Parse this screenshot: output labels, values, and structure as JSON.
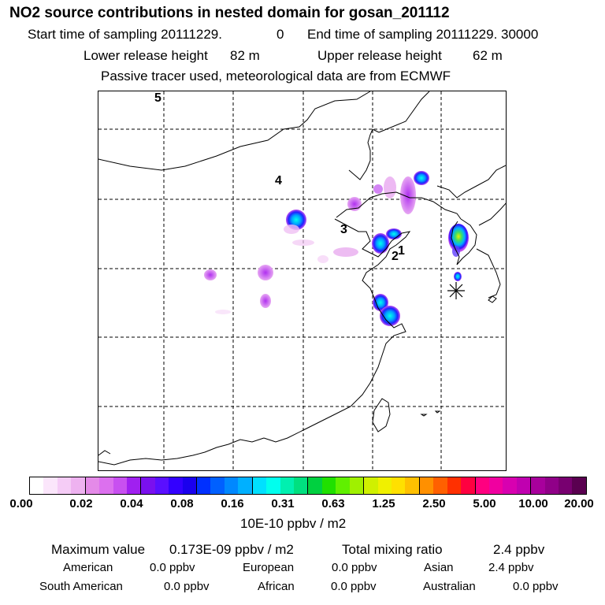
{
  "header": {
    "title": "NO2 source contributions in nested domain for gosan_201112",
    "start_label": "Start time of sampling 20111229.",
    "start_hour": "0",
    "end_label": "End time of sampling 20111229. 30000",
    "lower_label": "Lower release height",
    "lower_value": "82 m",
    "upper_label": "Upper release height",
    "upper_value": "62 m",
    "tracer_note": "Passive tracer used, meteorological data are from ECMWF"
  },
  "map": {
    "region_labels": [
      "5",
      "4",
      "3",
      "1",
      "2"
    ],
    "receptor_marker": "gosan-receptor-star"
  },
  "colorbar": {
    "ticks": [
      "0.00",
      "0.02",
      "0.04",
      "0.08",
      "0.16",
      "0.31",
      "0.63",
      "1.25",
      "2.50",
      "5.00",
      "10.00",
      "20.00"
    ],
    "colors": [
      "#ffffff",
      "#fbe6fb",
      "#f5ccf6",
      "#eeb2f0",
      "#e48ae8",
      "#dc70ee",
      "#c850f0",
      "#a020f0",
      "#7a10ee",
      "#5a0fff",
      "#3300ff",
      "#1a00ee",
      "#0030ff",
      "#0060ff",
      "#0088ff",
      "#00b0ff",
      "#00e0ff",
      "#00ffee",
      "#00f0b0",
      "#00e080",
      "#00d040",
      "#20e000",
      "#60f000",
      "#a0f000",
      "#d0f000",
      "#f0f000",
      "#ffe000",
      "#ffc000",
      "#ff9000",
      "#ff6000",
      "#ff3000",
      "#ff0040",
      "#ff0080",
      "#f000a0",
      "#d800b0",
      "#c000b0",
      "#a8009c",
      "#900088",
      "#780070",
      "#5a0050"
    ],
    "units": "10E-10 ppbv / m2"
  },
  "summary": {
    "max_label": "Maximum value",
    "max_value": "0.173E-09 ppbv / m2",
    "total_label": "Total mixing ratio",
    "total_value": "2.4 ppbv",
    "regions": [
      {
        "name": "American",
        "value": "0.0 ppbv"
      },
      {
        "name": "European",
        "value": "0.0 ppbv"
      },
      {
        "name": "Asian",
        "value": "2.4 ppbv"
      },
      {
        "name": "South American",
        "value": "0.0 ppbv"
      },
      {
        "name": "African",
        "value": "0.0 ppbv"
      },
      {
        "name": "Australian",
        "value": "0.0 ppbv"
      }
    ]
  }
}
